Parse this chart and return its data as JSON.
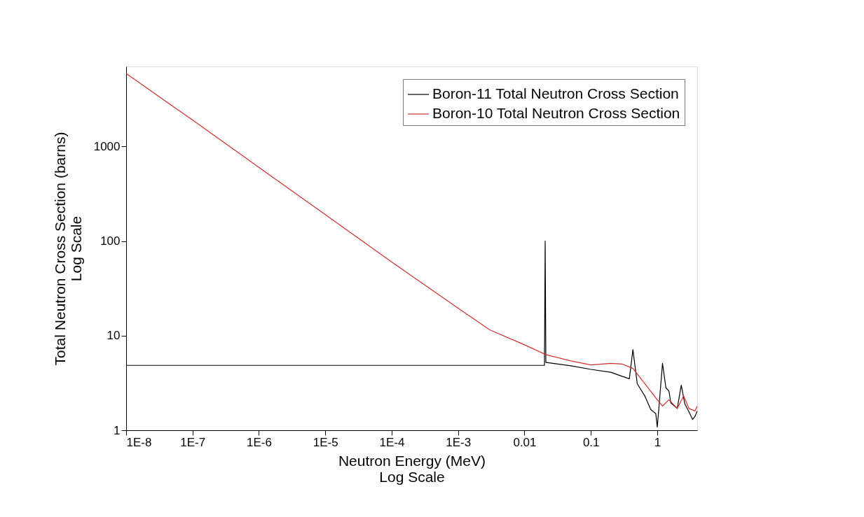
{
  "chart_data": {
    "type": "line",
    "xlabel": "Neutron Energy (MeV)\nLog Scale",
    "ylabel": "Total Neutron Cross Section (barns)\nLog Scale",
    "log": "xy",
    "grid": false,
    "legend": "top right",
    "line_style": "solid",
    "marker": "none",
    "xlim": [
      1e-08,
      4
    ],
    "ylim": [
      1,
      7000
    ],
    "xticks": [
      {
        "value": 1e-08,
        "label": "1E-8"
      },
      {
        "value": 1e-07,
        "label": "1E-7"
      },
      {
        "value": 1e-06,
        "label": "1E-6"
      },
      {
        "value": 1e-05,
        "label": "1E-5"
      },
      {
        "value": 0.0001,
        "label": "1E-4"
      },
      {
        "value": 0.001,
        "label": "1E-3"
      },
      {
        "value": 0.01,
        "label": "0.01"
      },
      {
        "value": 0.1,
        "label": "0.1"
      },
      {
        "value": 1,
        "label": "1"
      }
    ],
    "yticks": [
      1,
      10,
      100,
      1000
    ],
    "series": [
      {
        "name": "Boron-11 Total Neutron Cross Section",
        "color": "#000000",
        "x": [
          1e-08,
          0.0001,
          0.02,
          0.0205,
          0.021,
          0.0215,
          0.05,
          0.1,
          0.2,
          0.3,
          0.38,
          0.43,
          0.5,
          0.65,
          0.8,
          0.95,
          1.0,
          1.05,
          1.2,
          1.35,
          1.5,
          1.6,
          2.0,
          2.3,
          2.6,
          3.0,
          3.4,
          3.7,
          4
        ],
        "values": [
          4.85,
          4.85,
          4.85,
          100,
          5.2,
          5.2,
          4.8,
          4.4,
          4.1,
          3.7,
          3.5,
          7.1,
          3.1,
          2.3,
          1.65,
          1.5,
          1.08,
          1.6,
          5.1,
          2.8,
          2.6,
          1.95,
          1.7,
          3.0,
          1.9,
          1.57,
          1.3,
          1.4,
          1.6
        ]
      },
      {
        "name": "Boron-10 Total Neutron Cross Section",
        "color": "#d03030",
        "x": [
          1e-08,
          1e-07,
          1e-06,
          1e-05,
          0.0001,
          0.001,
          0.003,
          0.01,
          0.021,
          0.05,
          0.1,
          0.2,
          0.3,
          0.43,
          0.7,
          1.0,
          1.2,
          1.5,
          2.0,
          2.5,
          3.0,
          3.7,
          4
        ],
        "values": [
          5900,
          1900,
          600,
          190,
          60,
          19.5,
          11.5,
          8.0,
          6.3,
          5.4,
          4.9,
          5.1,
          5.0,
          4.5,
          2.9,
          2.1,
          1.8,
          2.1,
          1.7,
          2.3,
          1.7,
          1.6,
          1.8
        ]
      }
    ]
  }
}
